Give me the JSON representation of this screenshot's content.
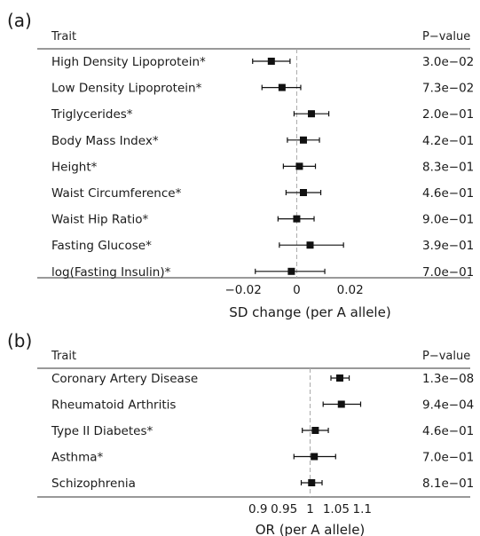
{
  "chart_data": [
    {
      "type": "forest",
      "panel_label": "(a)",
      "header_left": "Trait",
      "header_right": "P−value",
      "xlabel": "SD change (per A allele)",
      "xlim": [
        -0.034,
        0.044
      ],
      "xticks": [
        -0.02,
        0,
        0.02
      ],
      "xtick_labels": [
        "−0.02",
        "0",
        "0.02"
      ],
      "reference": 0,
      "rows": [
        {
          "trait": "High Density Lipoprotein*",
          "est": -0.0095,
          "lo": -0.0165,
          "hi": -0.0025,
          "p": "3.0e−02"
        },
        {
          "trait": "Low Density Lipoprotein*",
          "est": -0.0055,
          "lo": -0.013,
          "hi": 0.0015,
          "p": "7.3e−02"
        },
        {
          "trait": "Triglycerides*",
          "est": 0.0055,
          "lo": -0.001,
          "hi": 0.012,
          "p": "2.0e−01"
        },
        {
          "trait": "Body Mass Index*",
          "est": 0.0025,
          "lo": -0.0035,
          "hi": 0.0085,
          "p": "4.2e−01"
        },
        {
          "trait": "Height*",
          "est": 0.001,
          "lo": -0.005,
          "hi": 0.007,
          "p": "8.3e−01"
        },
        {
          "trait": "Waist Circumference*",
          "est": 0.0025,
          "lo": -0.004,
          "hi": 0.009,
          "p": "4.6e−01"
        },
        {
          "trait": "Waist Hip Ratio*",
          "est": 0.0,
          "lo": -0.007,
          "hi": 0.0065,
          "p": "9.0e−01"
        },
        {
          "trait": "Fasting Glucose*",
          "est": 0.005,
          "lo": -0.0065,
          "hi": 0.0175,
          "p": "3.9e−01"
        },
        {
          "trait": "log(Fasting Insulin)*",
          "est": -0.002,
          "lo": -0.0155,
          "hi": 0.0105,
          "p": "7.0e−01"
        }
      ]
    },
    {
      "type": "forest",
      "panel_label": "(b)",
      "header_left": "Trait",
      "header_right": "P−value",
      "xlabel": "OR (per A allele)",
      "xlim": [
        0.8,
        1.2
      ],
      "xticks": [
        0.9,
        0.95,
        1,
        1.05,
        1.1
      ],
      "xtick_labels": [
        "0.9",
        "0.95",
        "1",
        "1.05",
        "1.1"
      ],
      "reference": 1,
      "rows": [
        {
          "trait": "Coronary Artery Disease",
          "est": 1.057,
          "lo": 1.04,
          "hi": 1.075,
          "p": "1.3e−08"
        },
        {
          "trait": "Rheumatoid Arthritis",
          "est": 1.06,
          "lo": 1.025,
          "hi": 1.097,
          "p": "9.4e−04"
        },
        {
          "trait": "Type II Diabetes*",
          "est": 1.01,
          "lo": 0.985,
          "hi": 1.035,
          "p": "4.6e−01"
        },
        {
          "trait": "Asthma*",
          "est": 1.008,
          "lo": 0.969,
          "hi": 1.049,
          "p": "7.0e−01"
        },
        {
          "trait": "Schizophrenia",
          "est": 1.003,
          "lo": 0.983,
          "hi": 1.023,
          "p": "8.1e−01"
        }
      ]
    }
  ]
}
